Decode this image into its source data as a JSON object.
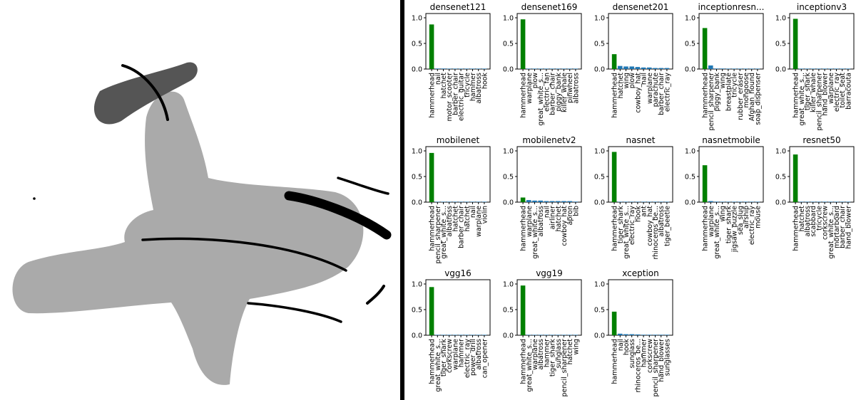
{
  "colors": {
    "top_bar": "#008000",
    "other_bar": "#1f77b4",
    "drawing_dark": "#555555",
    "drawing_light": "#aaaaaa",
    "stroke": "#000000",
    "divider": "#000000"
  },
  "drawing": {
    "description_icon": "hammerhead-shark-sketch"
  },
  "chart_data": [
    {
      "type": "bar",
      "title": "densenet121",
      "ylim": [
        0,
        1.0
      ],
      "yticks": [
        "0.0",
        "0.5",
        "1.0"
      ],
      "categories": [
        "hammerhead",
        "nail",
        "hatchet",
        "motor_scooter",
        "barber_chair",
        "electric_guitar",
        "tricycle",
        "hammer",
        "albatross",
        "hook"
      ],
      "values": [
        0.87,
        0.01,
        0.01,
        0.005,
        0.005,
        0.004,
        0.004,
        0.003,
        0.003,
        0.003
      ]
    },
    {
      "type": "bar",
      "title": "densenet169",
      "ylim": [
        0,
        1.0
      ],
      "yticks": [
        "0.0",
        "0.5",
        "1.0"
      ],
      "categories": [
        "hammerhead",
        "warplane",
        "plow",
        "great_white_s...",
        "electric_fan",
        "barber_chair",
        "piggy_bank",
        "killer_whale",
        "pinwheel",
        "albatross"
      ],
      "values": [
        0.97,
        0.004,
        0.003,
        0.003,
        0.002,
        0.002,
        0.002,
        0.002,
        0.002,
        0.002
      ]
    },
    {
      "type": "bar",
      "title": "densenet201",
      "ylim": [
        0,
        1.0
      ],
      "yticks": [
        "0.0",
        "0.5",
        "1.0"
      ],
      "categories": [
        "hammerhead",
        "hatchet",
        "wing",
        "plow",
        "cowboy_hat",
        "nail",
        "warplane",
        "parachute",
        "barber_chair",
        "electric_ray"
      ],
      "values": [
        0.29,
        0.06,
        0.05,
        0.05,
        0.04,
        0.03,
        0.03,
        0.02,
        0.02,
        0.02
      ]
    },
    {
      "type": "bar",
      "title": "inceptionresn...",
      "ylim": [
        0,
        1.0
      ],
      "yticks": [
        "0.0",
        "0.5",
        "1.0"
      ],
      "categories": [
        "hammerhead",
        "pencil_sharpener",
        "piggy_bank",
        "wing",
        "breastplate",
        "tricycle",
        "rubber_eraser",
        "mongoose",
        "Afghan_hound",
        "soap_dispenser"
      ],
      "values": [
        0.8,
        0.07,
        0.01,
        0.01,
        0.005,
        0.005,
        0.004,
        0.003,
        0.003,
        0.003
      ]
    },
    {
      "type": "bar",
      "title": "inceptionv3",
      "ylim": [
        0,
        1.0
      ],
      "yticks": [
        "0.0",
        "0.5",
        "1.0"
      ],
      "categories": [
        "hammerhead",
        "great_white_s...",
        "tiger_shark",
        "killer_whale",
        "pencil_sharpener",
        "hand_blower",
        "warplane",
        "electric_ray",
        "toilet_seat",
        "barracouta"
      ],
      "values": [
        0.98,
        0.005,
        0.003,
        0.002,
        0.002,
        0.002,
        0.002,
        0.001,
        0.001,
        0.001
      ]
    },
    {
      "type": "bar",
      "title": "mobilenet",
      "ylim": [
        0,
        1.0
      ],
      "yticks": [
        "0.0",
        "0.5",
        "1.0"
      ],
      "categories": [
        "hammerhead",
        "pencil_sharpener",
        "great_white_s...",
        "albatross",
        "hatchet",
        "barber_chair",
        "hatchet",
        "nail",
        "warplane",
        "violin"
      ],
      "values": [
        0.96,
        0.005,
        0.004,
        0.003,
        0.003,
        0.002,
        0.002,
        0.002,
        0.002,
        0.002
      ]
    },
    {
      "type": "bar",
      "title": "mobilenetv2",
      "ylim": [
        0,
        1.0
      ],
      "yticks": [
        "0.0",
        "0.5",
        "1.0"
      ],
      "categories": [
        "hammerhead",
        "warplane",
        "great_white_s...",
        "albatross",
        "nail",
        "airliner",
        "hatchet",
        "cowboy_hat",
        "apron",
        "bib"
      ],
      "values": [
        0.09,
        0.04,
        0.03,
        0.03,
        0.02,
        0.02,
        0.02,
        0.02,
        0.02,
        0.01
      ]
    },
    {
      "type": "bar",
      "title": "nasnet",
      "ylim": [
        0,
        1.0
      ],
      "yticks": [
        "0.0",
        "0.5",
        "1.0"
      ],
      "categories": [
        "hammerhead",
        "tiger_shark",
        "great_white_s...",
        "electric_ray",
        "hook",
        "ant",
        "cowboy_hat",
        "rhinoceros_be...",
        "albatross",
        "tiger_beetle"
      ],
      "values": [
        0.98,
        0.004,
        0.003,
        0.002,
        0.002,
        0.002,
        0.002,
        0.001,
        0.001,
        0.001
      ]
    },
    {
      "type": "bar",
      "title": "nasnetmobile",
      "ylim": [
        0,
        1.0
      ],
      "yticks": [
        "0.0",
        "0.5",
        "1.0"
      ],
      "categories": [
        "hammerhead",
        "warplane",
        "great_white_s...",
        "wing",
        "tiger_shark",
        "jigsaw_puzzle",
        "sea_slug",
        "airship",
        "electric_ray",
        "mouse"
      ],
      "values": [
        0.72,
        0.02,
        0.01,
        0.005,
        0.005,
        0.004,
        0.004,
        0.003,
        0.003,
        0.003
      ]
    },
    {
      "type": "bar",
      "title": "resnet50",
      "ylim": [
        0,
        1.0
      ],
      "yticks": [
        "0.0",
        "0.5",
        "1.0"
      ],
      "categories": [
        "hammerhead",
        "hatchet",
        "albatross",
        "scabbard",
        "tricycle",
        "corkscrew",
        "great_white_s...",
        "mortarboard",
        "barber_chair",
        "hand_blower"
      ],
      "values": [
        0.93,
        0.005,
        0.004,
        0.003,
        0.003,
        0.002,
        0.002,
        0.002,
        0.002,
        0.002
      ]
    },
    {
      "type": "bar",
      "title": "vgg16",
      "ylim": [
        0,
        1.0
      ],
      "yticks": [
        "0.0",
        "0.5",
        "1.0"
      ],
      "categories": [
        "hammerhead",
        "great_white_s...",
        "tiger_shark",
        "corkscrew",
        "warplane",
        "hammer",
        "electric_ray",
        "power_drill",
        "albatross",
        "can_opener"
      ],
      "values": [
        0.94,
        0.005,
        0.004,
        0.003,
        0.003,
        0.002,
        0.002,
        0.002,
        0.002,
        0.002
      ]
    },
    {
      "type": "bar",
      "title": "vgg19",
      "ylim": [
        0,
        1.0
      ],
      "yticks": [
        "0.0",
        "0.5",
        "1.0"
      ],
      "categories": [
        "hammerhead",
        "great_white_s...",
        "warplane",
        "albatross",
        "hammer",
        "tiger_shark",
        "sunglass",
        "pencil_sharpener",
        "hatchet",
        "wing"
      ],
      "values": [
        0.97,
        0.005,
        0.004,
        0.003,
        0.003,
        0.002,
        0.002,
        0.002,
        0.002,
        0.002
      ]
    },
    {
      "type": "bar",
      "title": "xception",
      "ylim": [
        0,
        1.0
      ],
      "yticks": [
        "0.0",
        "0.5",
        "1.0"
      ],
      "categories": [
        "hammerhead",
        "nail",
        "hook",
        "sunglass",
        "rhinoceros_be...",
        "hammer",
        "corkscrew",
        "pencil_sharpener",
        "hand_blower",
        "sunglasses"
      ],
      "values": [
        0.46,
        0.03,
        0.02,
        0.02,
        0.015,
        0.01,
        0.01,
        0.01,
        0.01,
        0.01
      ]
    }
  ]
}
